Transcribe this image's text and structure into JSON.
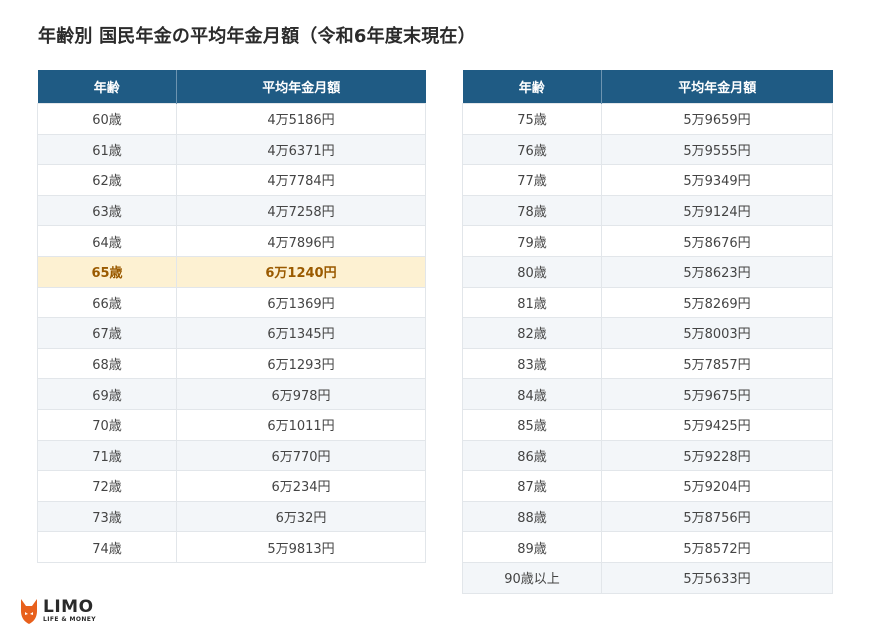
{
  "title": "年齢別 国民年金の平均年金月額（令和6年度末現在）",
  "headers": {
    "age": "年齢",
    "amount": "平均年金月額"
  },
  "left_table": [
    {
      "age": "60歳",
      "amount": "4万5186円"
    },
    {
      "age": "61歳",
      "amount": "4万6371円"
    },
    {
      "age": "62歳",
      "amount": "4万7784円"
    },
    {
      "age": "63歳",
      "amount": "4万7258円"
    },
    {
      "age": "64歳",
      "amount": "4万7896円"
    },
    {
      "age": "65歳",
      "amount": "6万1240円",
      "highlight": true
    },
    {
      "age": "66歳",
      "amount": "6万1369円"
    },
    {
      "age": "67歳",
      "amount": "6万1345円"
    },
    {
      "age": "68歳",
      "amount": "6万1293円"
    },
    {
      "age": "69歳",
      "amount": "6万978円"
    },
    {
      "age": "70歳",
      "amount": "6万1011円"
    },
    {
      "age": "71歳",
      "amount": "6万770円"
    },
    {
      "age": "72歳",
      "amount": "6万234円"
    },
    {
      "age": "73歳",
      "amount": "6万32円"
    },
    {
      "age": "74歳",
      "amount": "5万9813円"
    }
  ],
  "right_table": [
    {
      "age": "75歳",
      "amount": "5万9659円"
    },
    {
      "age": "76歳",
      "amount": "5万9555円"
    },
    {
      "age": "77歳",
      "amount": "5万9349円"
    },
    {
      "age": "78歳",
      "amount": "5万9124円"
    },
    {
      "age": "79歳",
      "amount": "5万8676円"
    },
    {
      "age": "80歳",
      "amount": "5万8623円"
    },
    {
      "age": "81歳",
      "amount": "5万8269円"
    },
    {
      "age": "82歳",
      "amount": "5万8003円"
    },
    {
      "age": "83歳",
      "amount": "5万7857円"
    },
    {
      "age": "84歳",
      "amount": "5万9675円"
    },
    {
      "age": "85歳",
      "amount": "5万9425円"
    },
    {
      "age": "86歳",
      "amount": "5万9228円"
    },
    {
      "age": "87歳",
      "amount": "5万9204円"
    },
    {
      "age": "88歳",
      "amount": "5万8756円"
    },
    {
      "age": "89歳",
      "amount": "5万8572円"
    },
    {
      "age": "90歳以上",
      "amount": "5万5633円"
    }
  ],
  "colors": {
    "header_bg": "#1f5b84",
    "highlight_bg": "#fdf1d2",
    "highlight_text": "#9a5a00",
    "logo_accent": "#e8601c"
  },
  "logo": {
    "name": "LIMO",
    "tagline": "LIFE & MONEY",
    "icon": "fox-icon"
  }
}
